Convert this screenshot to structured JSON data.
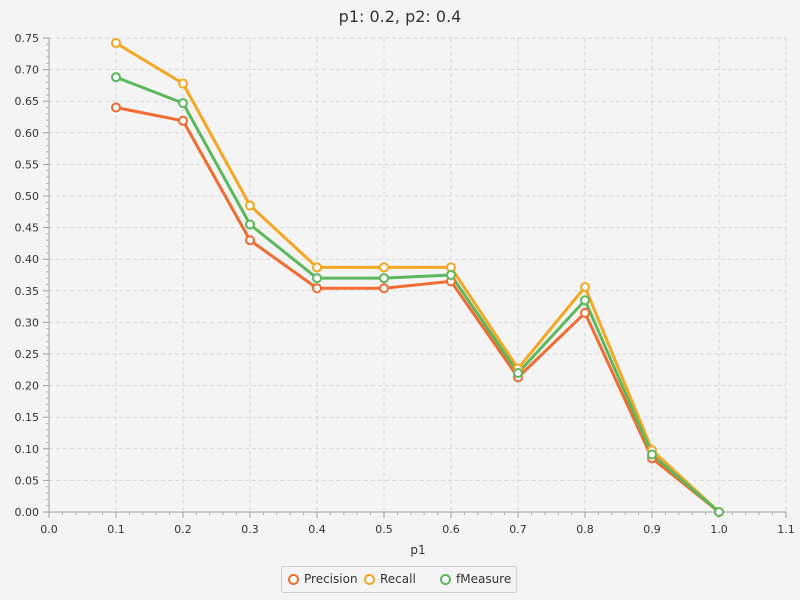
{
  "chart_data": {
    "type": "line",
    "title": "p1: 0.2, p2: 0.4",
    "xlabel": "p1",
    "ylabel": "",
    "xlim": [
      0.0,
      1.1
    ],
    "ylim": [
      0.0,
      0.75
    ],
    "x_ticks": [
      "0.0",
      "0.1",
      "0.2",
      "0.3",
      "0.4",
      "0.5",
      "0.6",
      "0.7",
      "0.8",
      "0.9",
      "1.0",
      "1.1"
    ],
    "y_ticks": [
      "0.00",
      "0.05",
      "0.10",
      "0.15",
      "0.20",
      "0.25",
      "0.30",
      "0.35",
      "0.40",
      "0.45",
      "0.50",
      "0.55",
      "0.60",
      "0.65",
      "0.70",
      "0.75"
    ],
    "grid": true,
    "legend_position": "bottom-center",
    "x": [
      0.1,
      0.2,
      0.3,
      0.4,
      0.5,
      0.6,
      0.7,
      0.8,
      0.9,
      1.0
    ],
    "series": [
      {
        "name": "Precision",
        "color": "#f26b32",
        "values": [
          0.64,
          0.619,
          0.43,
          0.354,
          0.354,
          0.365,
          0.213,
          0.315,
          0.085,
          0.0
        ]
      },
      {
        "name": "Recall",
        "color": "#f5a623",
        "values": [
          0.742,
          0.678,
          0.485,
          0.387,
          0.387,
          0.387,
          0.227,
          0.356,
          0.098,
          0.0
        ]
      },
      {
        "name": "fMeasure",
        "color": "#5cb85c",
        "values": [
          0.688,
          0.647,
          0.455,
          0.37,
          0.37,
          0.375,
          0.22,
          0.335,
          0.091,
          0.0
        ]
      }
    ]
  }
}
